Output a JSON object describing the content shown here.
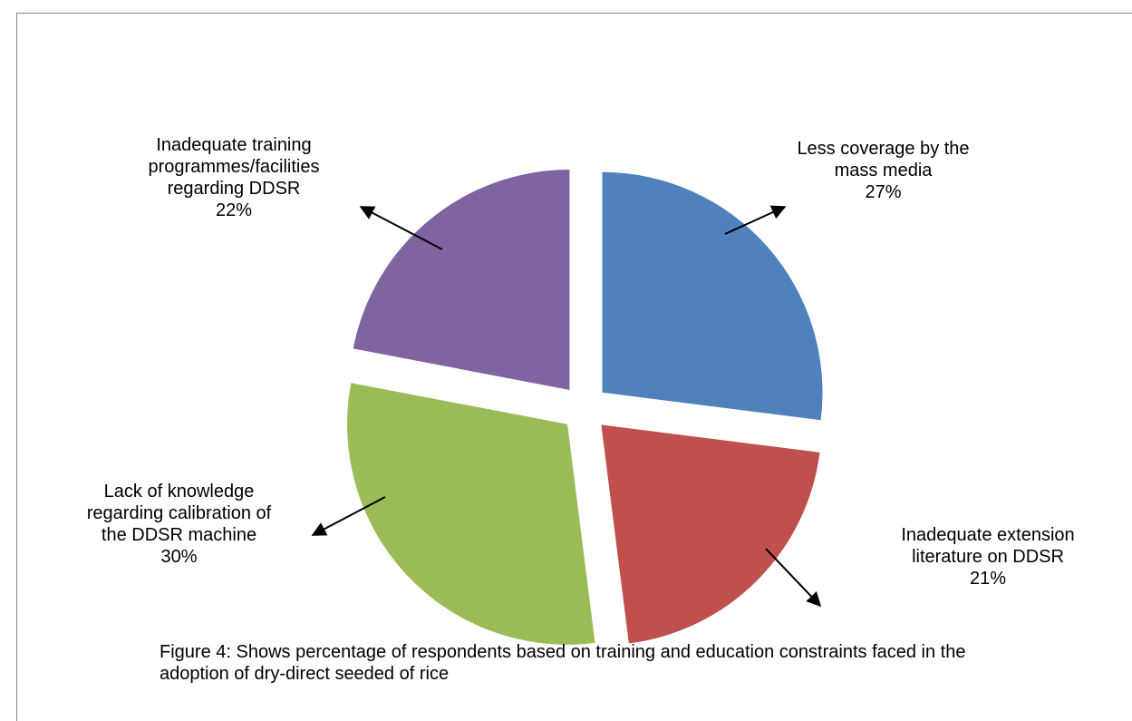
{
  "chart_data": {
    "type": "pie",
    "caption": "Figure 4: Shows percentage of respondents based on training and education constraints faced in the adoption of dry-direct seeded of rice",
    "categories": [
      "Less coverage by the mass media",
      "Inadequate extension literature on DDSR",
      "Lack of knowledge regarding calibration of the DDSR machine",
      "Inadequate training programmes/facilities regarding DDSR"
    ],
    "values": [
      27,
      21,
      30,
      22
    ],
    "value_labels": [
      "27%",
      "21%",
      "30%",
      "22%"
    ],
    "colors": [
      "#4f81bd",
      "#c0504d",
      "#9bbb59",
      "#8064a2"
    ]
  }
}
